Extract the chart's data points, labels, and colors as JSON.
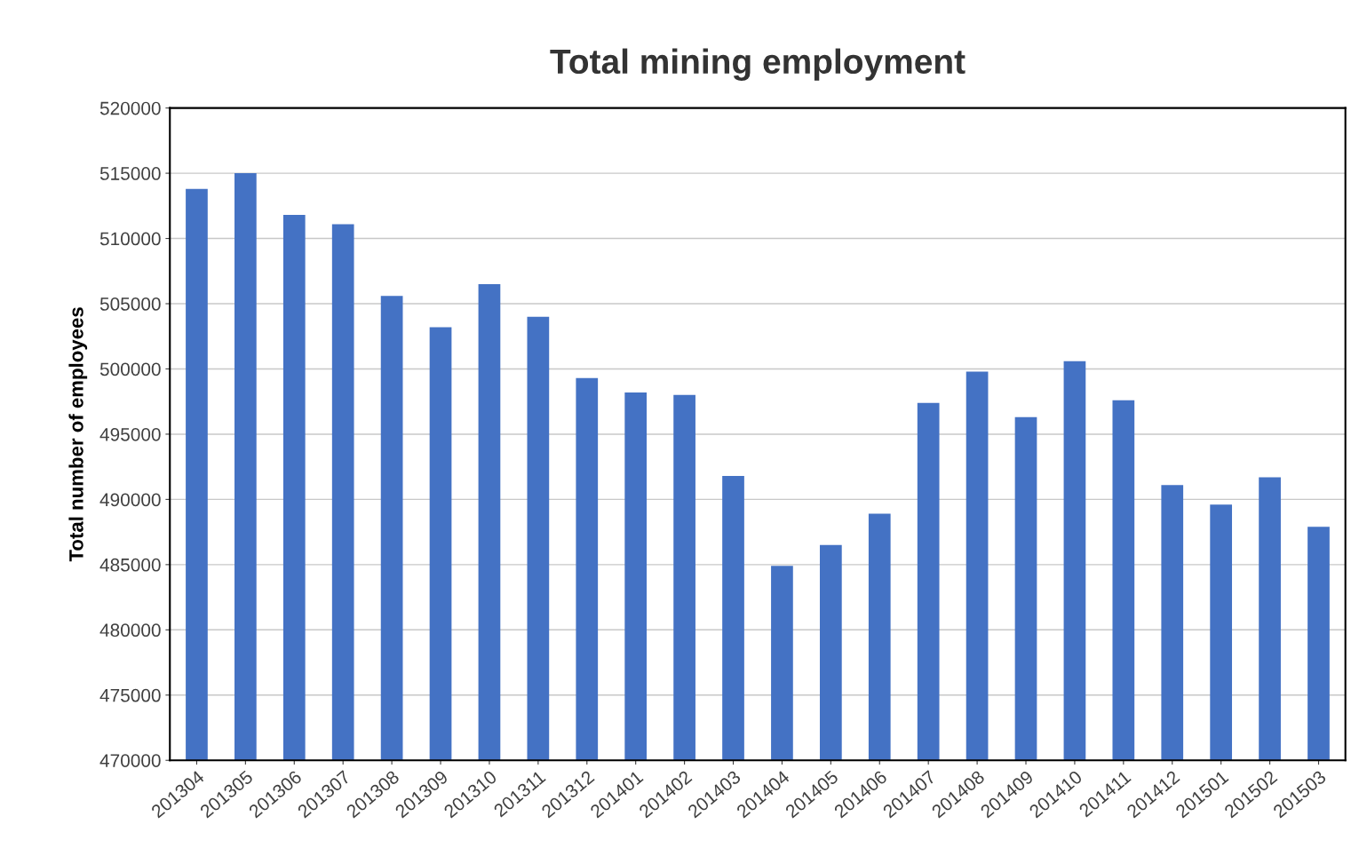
{
  "chart_data": {
    "type": "bar",
    "title": "Total mining employment",
    "ylabel": "Total number of employees",
    "categories": [
      "201304",
      "201305",
      "201306",
      "201307",
      "201308",
      "201309",
      "201310",
      "201311",
      "201312",
      "201401",
      "201402",
      "201403",
      "201404",
      "201405",
      "201406",
      "201407",
      "201408",
      "201409",
      "201410",
      "201411",
      "201412",
      "201501",
      "201502",
      "201503"
    ],
    "values": [
      513800,
      515000,
      511800,
      511100,
      505600,
      503200,
      506500,
      504000,
      499300,
      498200,
      498000,
      491800,
      484900,
      486500,
      488900,
      497400,
      499800,
      496300,
      500600,
      497600,
      491100,
      489600,
      491700,
      487900
    ],
    "color": "#4472c4",
    "ylim": [
      470000,
      520000
    ],
    "yticks": [
      470000,
      475000,
      480000,
      485000,
      490000,
      495000,
      500000,
      505000,
      510000,
      515000,
      520000
    ],
    "grid": "y",
    "legend": false
  }
}
